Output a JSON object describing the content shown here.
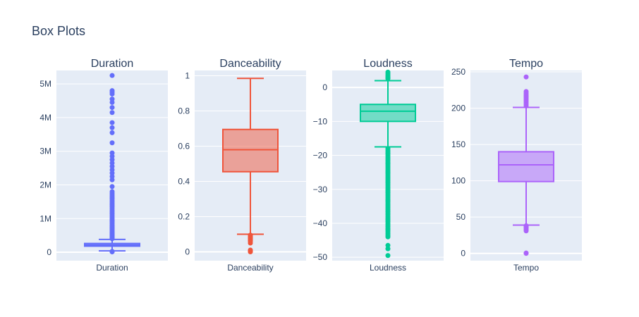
{
  "figure": {
    "title": "Box Plots"
  },
  "chart_data": [
    {
      "type": "box",
      "title": "Duration",
      "category": "Duration",
      "color": "#636efa",
      "fill": "rgba(99,110,250,0.5)",
      "ylim": [
        -250000,
        5400000
      ],
      "yticks": [
        0,
        1000000,
        2000000,
        3000000,
        4000000,
        5000000
      ],
      "ytick_labels": [
        "0",
        "1M",
        "2M",
        "3M",
        "4M",
        "5M"
      ],
      "q1": 180000,
      "median": 215000,
      "q3": 260000,
      "whisker_low": 40000,
      "whisker_high": 380000,
      "outliers": [
        10000,
        18000,
        25000,
        400000,
        420000,
        440000,
        460000,
        480000,
        500000,
        520000,
        540000,
        560000,
        580000,
        600000,
        630000,
        660000,
        690000,
        720000,
        750000,
        780000,
        810000,
        850000,
        880000,
        920000,
        950000,
        1000000,
        1050000,
        1100000,
        1150000,
        1200000,
        1250000,
        1300000,
        1350000,
        1400000,
        1450000,
        1500000,
        1550000,
        1600000,
        1650000,
        1700000,
        1750000,
        1800000,
        1950000,
        2150000,
        2250000,
        2350000,
        2450000,
        2550000,
        2650000,
        2750000,
        2850000,
        2950000,
        3250000,
        3550000,
        3700000,
        3850000,
        4150000,
        4300000,
        4450000,
        4550000,
        4700000,
        4750000,
        4800000,
        5250000
      ]
    },
    {
      "type": "box",
      "title": "Danceability",
      "category": "Danceability",
      "color": "#EF553B",
      "fill": "rgba(239,85,59,0.5)",
      "ylim": [
        -0.05,
        1.03
      ],
      "yticks": [
        0,
        0.2,
        0.4,
        0.6,
        0.8,
        1
      ],
      "ytick_labels": [
        "0",
        "0.2",
        "0.4",
        "0.6",
        "0.8",
        "1"
      ],
      "q1": 0.455,
      "median": 0.58,
      "q3": 0.695,
      "whisker_low": 0.1,
      "whisker_high": 0.985,
      "outliers": [
        0.0,
        0.005,
        0.01,
        0.05,
        0.06,
        0.065,
        0.07,
        0.075,
        0.08,
        0.085,
        0.09,
        0.095
      ]
    },
    {
      "type": "box",
      "title": "Loudness",
      "category": "Loudness",
      "color": "#00cc96",
      "fill": "rgba(0,204,150,0.5)",
      "ylim": [
        -51,
        5
      ],
      "yticks": [
        0,
        -10,
        -20,
        -30,
        -40,
        -50
      ],
      "ytick_labels": [
        "0",
        "−10",
        "−20",
        "−30",
        "−40",
        "−50"
      ],
      "q1": -10,
      "median": -7,
      "q3": -5,
      "whisker_low": -17.5,
      "whisker_high": 2,
      "outliers": [
        4.5,
        4,
        3.5,
        3,
        2.6,
        -18,
        -18.5,
        -19,
        -19.5,
        -20,
        -20.5,
        -21,
        -21.5,
        -22,
        -22.5,
        -23,
        -23.5,
        -24,
        -24.5,
        -25,
        -25.5,
        -26,
        -26.5,
        -27,
        -27.5,
        -28,
        -28.5,
        -29,
        -29.5,
        -30,
        -30.5,
        -31,
        -31.5,
        -32,
        -32.5,
        -33,
        -33.5,
        -34,
        -34.5,
        -35,
        -35.5,
        -36,
        -36.5,
        -37,
        -37.5,
        -38,
        -38.5,
        -39,
        -39.5,
        -40,
        -40.5,
        -41,
        -41.5,
        -42,
        -42.5,
        -43,
        -43.5,
        -44,
        -46.5,
        -47.5,
        -49.5
      ]
    },
    {
      "type": "box",
      "title": "Tempo",
      "category": "Tempo",
      "color": "#ab63fa",
      "fill": "rgba(171,99,250,0.5)",
      "ylim": [
        -10,
        252
      ],
      "yticks": [
        0,
        50,
        100,
        150,
        200,
        250
      ],
      "ytick_labels": [
        "0",
        "50",
        "100",
        "150",
        "200",
        "250"
      ],
      "q1": 99,
      "median": 122,
      "q3": 140,
      "whisker_low": 39,
      "whisker_high": 201,
      "outliers": [
        0,
        0.5,
        31,
        33,
        35,
        36,
        37,
        38,
        203,
        205,
        207,
        209,
        211,
        213,
        215,
        217,
        219,
        221,
        223,
        243
      ]
    }
  ]
}
